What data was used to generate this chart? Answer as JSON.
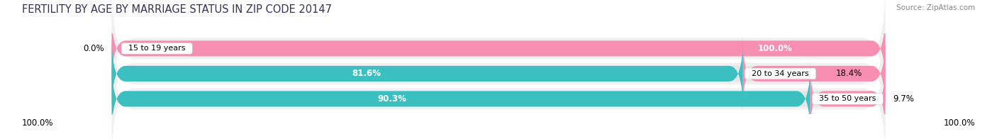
{
  "title": "FERTILITY BY AGE BY MARRIAGE STATUS IN ZIP CODE 20147",
  "source": "Source: ZipAtlas.com",
  "categories": [
    "15 to 19 years",
    "20 to 34 years",
    "35 to 50 years"
  ],
  "married_pct": [
    0.0,
    81.6,
    90.3
  ],
  "unmarried_pct": [
    100.0,
    18.4,
    9.7
  ],
  "married_color": "#3bbfc0",
  "unmarried_color": "#f78fb3",
  "bar_bg_color": "#e5e5e5",
  "title_fontsize": 10.5,
  "source_fontsize": 7.5,
  "label_fontsize": 8.0,
  "pct_fontsize": 8.5,
  "bar_height": 0.62,
  "background_color": "#ffffff",
  "row_bg_color": "#f0f0f0",
  "legend_color_married": "#3bbfc0",
  "legend_color_unmarried": "#f78fb3"
}
